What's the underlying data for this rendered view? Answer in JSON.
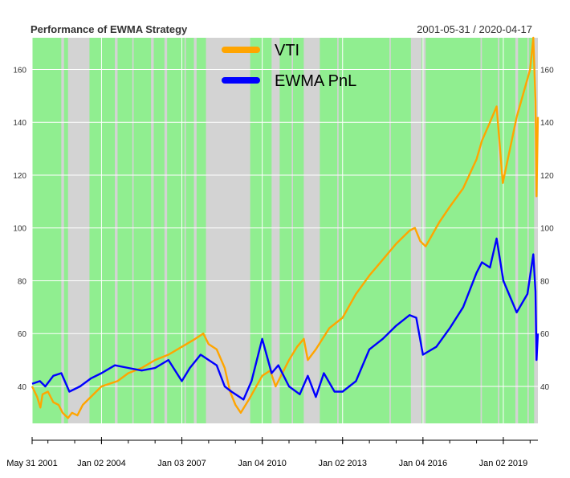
{
  "chart_data": {
    "type": "line",
    "title": "Performance of EWMA Strategy",
    "date_range": "2001-05-31 / 2020-04-17",
    "xlabel": "",
    "ylabel": "",
    "ylim": [
      26,
      172
    ],
    "y_ticks": [
      40,
      60,
      80,
      100,
      120,
      140,
      160
    ],
    "x_tick_labels": [
      "May 31 2001",
      "Jan 02 2004",
      "Jan 03 2007",
      "Jan 04 2010",
      "Jan 02 2013",
      "Jan 04 2016",
      "Jan 02 2019"
    ],
    "x_tick_years": [
      2001.41,
      2004.0,
      2007.0,
      2010.0,
      2013.0,
      2016.0,
      2019.0
    ],
    "x_range": [
      2001.41,
      2020.29
    ],
    "grid": true,
    "legend_position": "top-center",
    "colors": {
      "vti": "#ffa500",
      "ewma_pnl": "#0000ff",
      "long_region": "#90ee90",
      "flat_region": "#d3d3d3",
      "grid": "#ffffff",
      "text": "#333333"
    },
    "flat_regions": [
      [
        2002.5,
        2002.6
      ],
      [
        2002.75,
        2003.55
      ],
      [
        2004.5,
        2004.6
      ],
      [
        2005.15,
        2005.2
      ],
      [
        2005.85,
        2005.95
      ],
      [
        2006.35,
        2006.45
      ],
      [
        2007.1,
        2007.15
      ],
      [
        2007.45,
        2007.55
      ],
      [
        2007.9,
        2009.55
      ],
      [
        2010.35,
        2010.65
      ],
      [
        2011.1,
        2011.15
      ],
      [
        2011.55,
        2012.15
      ],
      [
        2012.8,
        2012.85
      ],
      [
        2014.75,
        2014.8
      ],
      [
        2015.55,
        2015.95
      ],
      [
        2016.0,
        2016.1
      ],
      [
        2018.15,
        2018.2
      ],
      [
        2018.8,
        2018.85
      ],
      [
        2019.45,
        2019.55
      ],
      [
        2019.9,
        2019.95
      ],
      [
        2020.15,
        2020.29
      ]
    ],
    "series": [
      {
        "name": "VTI",
        "x": [
          2001.41,
          2001.6,
          2001.72,
          2001.8,
          2002.0,
          2002.2,
          2002.4,
          2002.55,
          2002.75,
          2002.9,
          2003.1,
          2003.3,
          2003.6,
          2004.0,
          2004.6,
          2005.0,
          2005.5,
          2006.0,
          2006.5,
          2007.0,
          2007.5,
          2007.8,
          2008.0,
          2008.3,
          2008.6,
          2008.8,
          2009.0,
          2009.2,
          2009.5,
          2010.0,
          2010.3,
          2010.5,
          2011.0,
          2011.3,
          2011.55,
          2011.7,
          2012.0,
          2012.5,
          2013.0,
          2013.5,
          2014.0,
          2014.5,
          2015.0,
          2015.5,
          2015.7,
          2015.9,
          2016.1,
          2016.6,
          2017.0,
          2017.5,
          2018.0,
          2018.2,
          2018.5,
          2018.75,
          2018.98,
          2019.5,
          2020.0,
          2020.12,
          2020.2,
          2020.24,
          2020.29
        ],
        "values": [
          40,
          36,
          32,
          37,
          38,
          34,
          33,
          30,
          28,
          30,
          29,
          33,
          36,
          40,
          42,
          45,
          47,
          50,
          52,
          55,
          58,
          60,
          56,
          54,
          47,
          38,
          33,
          30,
          35,
          44,
          46,
          40,
          50,
          55,
          58,
          50,
          54,
          62,
          66,
          75,
          82,
          88,
          94,
          99,
          100,
          95,
          93,
          102,
          108,
          115,
          126,
          133,
          140,
          146,
          117,
          142,
          160,
          172,
          148,
          112,
          142
        ]
      },
      {
        "name": "EWMA PnL",
        "x": [
          2001.41,
          2001.7,
          2001.9,
          2002.2,
          2002.5,
          2002.8,
          2003.2,
          2003.6,
          2004.0,
          2004.5,
          2005.0,
          2005.5,
          2006.0,
          2006.5,
          2007.0,
          2007.3,
          2007.7,
          2008.0,
          2008.3,
          2008.6,
          2008.85,
          2009.0,
          2009.3,
          2009.6,
          2010.0,
          2010.35,
          2010.6,
          2011.0,
          2011.4,
          2011.7,
          2012.0,
          2012.3,
          2012.7,
          2013.0,
          2013.5,
          2014.0,
          2014.5,
          2015.0,
          2015.5,
          2015.75,
          2016.0,
          2016.5,
          2017.0,
          2017.5,
          2018.0,
          2018.2,
          2018.5,
          2018.75,
          2019.0,
          2019.5,
          2019.9,
          2020.12,
          2020.2,
          2020.24,
          2020.29
        ],
        "values": [
          41,
          42,
          40,
          44,
          45,
          38,
          40,
          43,
          45,
          48,
          47,
          46,
          47,
          50,
          42,
          47,
          52,
          50,
          48,
          40,
          38,
          37,
          35,
          42,
          58,
          45,
          48,
          40,
          37,
          44,
          36,
          45,
          38,
          38,
          42,
          54,
          58,
          63,
          67,
          66,
          52,
          55,
          62,
          70,
          83,
          87,
          85,
          96,
          80,
          68,
          75,
          90,
          76,
          50,
          60
        ]
      }
    ]
  }
}
